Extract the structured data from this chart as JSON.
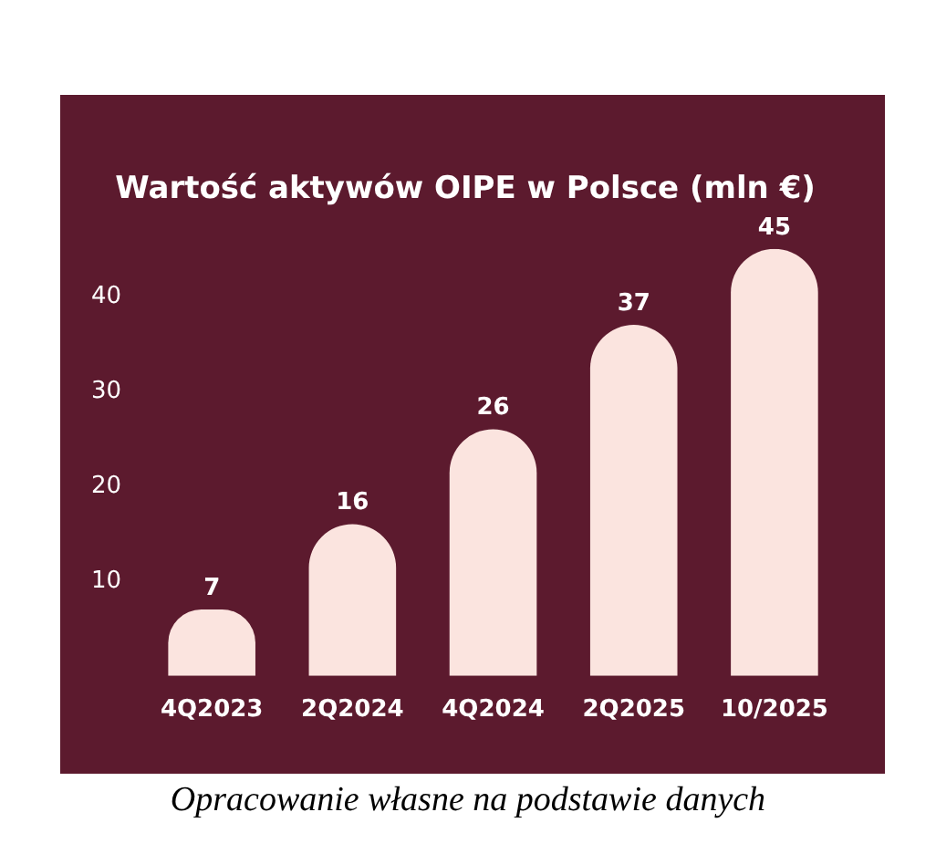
{
  "chart_data": {
    "type": "bar",
    "title": "Wartość aktywów OIPE w Polsce (mln €)",
    "categories": [
      "4Q2023",
      "2Q2024",
      "4Q2024",
      "2Q2025",
      "10/2025"
    ],
    "values": [
      7,
      16,
      26,
      37,
      45
    ],
    "color": "#fbe4df",
    "ylim": [
      0,
      45
    ],
    "yticks": [
      10,
      20,
      30,
      40
    ],
    "grid": false,
    "data_labels": true,
    "annotations": [
      "Opracowanie własne na podstawie danych"
    ]
  }
}
